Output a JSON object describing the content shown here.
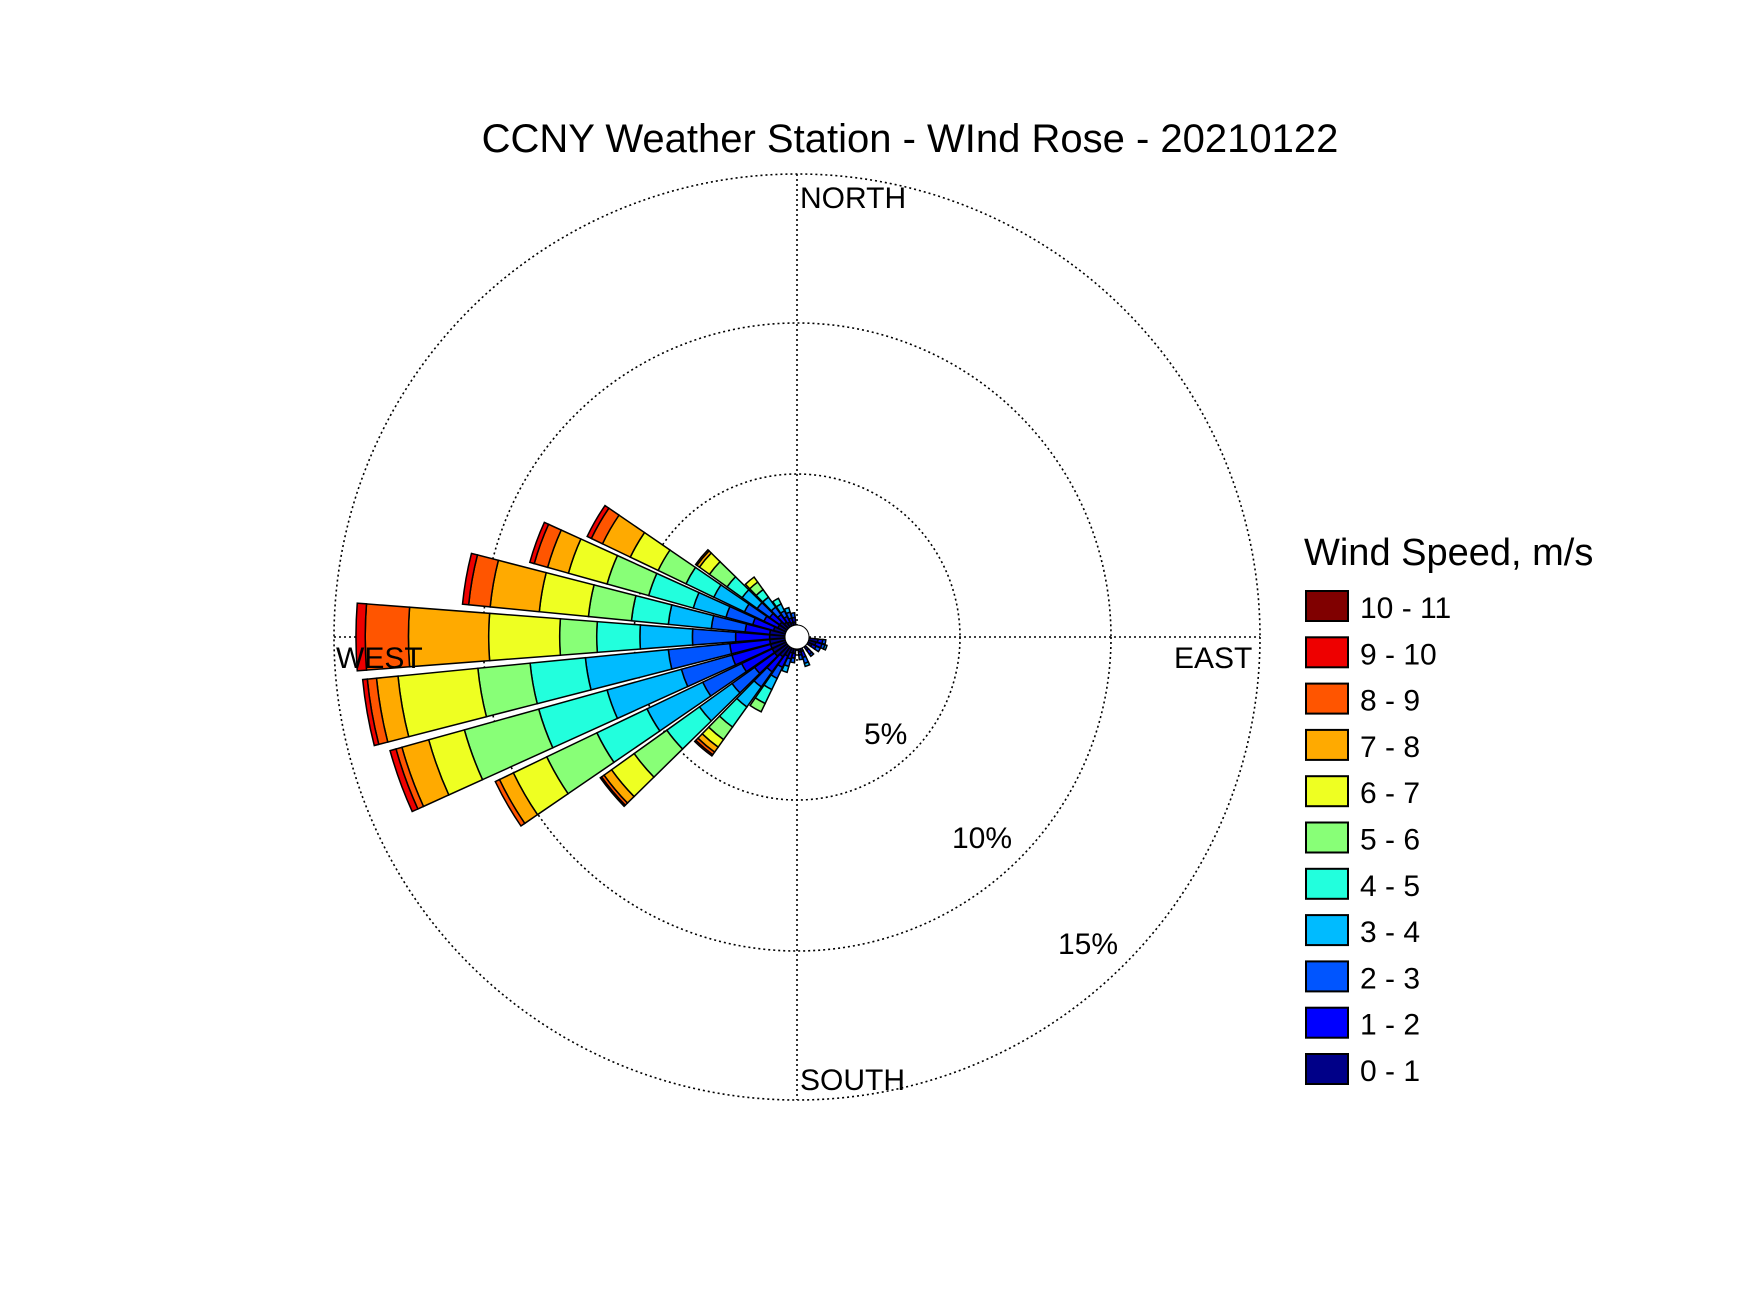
{
  "chart_data": {
    "type": "wind-rose",
    "title": "CCNY Weather Station - WInd Rose - 20210122",
    "direction_labels": {
      "north": "NORTH",
      "east": "EAST",
      "south": "SOUTH",
      "west": "WEST"
    },
    "ring_labels": [
      "5%",
      "10%",
      "15%"
    ],
    "rings": [
      5,
      10,
      15
    ],
    "rmax": 15,
    "grid": true,
    "legend_position": "right",
    "legend": {
      "title": "Wind Speed, m/s",
      "bins": [
        "10 - 11",
        "9 - 10",
        "8 - 9",
        "7 - 8",
        "6 - 7",
        "5 - 6",
        "4 - 5",
        "3 - 4",
        "2 - 3",
        "1 - 2",
        "0 - 1"
      ],
      "colors": [
        "#800000",
        "#ee0000",
        "#ff5500",
        "#ffaa00",
        "#eeff22",
        "#88ff77",
        "#22ffdd",
        "#00bbff",
        "#0055ff",
        "#0000ff",
        "#000088"
      ]
    },
    "bin_colors_low_to_high": [
      "#000088",
      "#0000ff",
      "#0055ff",
      "#00bbff",
      "#22ffdd",
      "#88ff77",
      "#eeff22",
      "#ffaa00",
      "#ff5500",
      "#ee0000",
      "#800000"
    ],
    "sector_width_deg": 10,
    "sectors": [
      {
        "direction": 100,
        "cumulative": [
          0.3,
          0.45,
          0.55
        ]
      },
      {
        "direction": 110,
        "cumulative": [
          0.25,
          0.45,
          0.55,
          0.62
        ]
      },
      {
        "direction": 120,
        "cumulative": [
          0.15,
          0.3,
          0.45
        ]
      },
      {
        "direction": 140,
        "cumulative": [
          0.15,
          0.3,
          0.38
        ]
      },
      {
        "direction": 160,
        "cumulative": [
          0.1,
          0.3,
          0.5,
          0.6
        ]
      },
      {
        "direction": 170,
        "cumulative": [
          0.1,
          0.2,
          0.35
        ]
      },
      {
        "direction": 190,
        "cumulative": [
          0.15,
          0.3,
          0.45
        ]
      },
      {
        "direction": 200,
        "cumulative": [
          0.15,
          0.35,
          0.6,
          0.8
        ]
      },
      {
        "direction": 210,
        "cumulative": [
          0.3,
          0.7,
          1.1,
          1.5,
          2.0,
          2.3
        ]
      },
      {
        "direction": 220,
        "cumulative": [
          0.4,
          1.0,
          1.6,
          2.4,
          3.2,
          3.7,
          4.0,
          4.2,
          4.3,
          4.35
        ]
      },
      {
        "direction": 230,
        "cumulative": [
          0.5,
          1.3,
          2.2,
          3.5,
          4.8,
          6.1,
          7.0,
          7.3,
          7.4,
          7.45
        ]
      },
      {
        "direction": 240,
        "cumulative": [
          0.5,
          1.6,
          3.0,
          5.0,
          6.8,
          8.6,
          9.8,
          10.3,
          10.45
        ]
      },
      {
        "direction": 250,
        "cumulative": [
          0.5,
          1.8,
          3.5,
          6.0,
          8.3,
          10.8,
          12.0,
          12.9,
          13.1,
          13.3
        ]
      },
      {
        "direction": 260,
        "cumulative": [
          0.5,
          1.8,
          3.8,
          6.5,
          8.3,
          10.0,
          12.6,
          13.3,
          13.6,
          13.75
        ]
      },
      {
        "direction": 270,
        "cumulative": [
          0.5,
          1.6,
          3.0,
          4.7,
          6.1,
          7.3,
          9.6,
          12.2,
          13.6,
          13.9
        ]
      },
      {
        "direction": 280,
        "cumulative": [
          0.5,
          1.3,
          2.4,
          3.8,
          5.0,
          6.4,
          8.0,
          9.6,
          10.3,
          10.5
        ]
      },
      {
        "direction": 290,
        "cumulative": [
          0.4,
          1.1,
          2.0,
          3.1,
          4.6,
          6.0,
          7.3,
          8.0,
          8.45,
          8.6
        ]
      },
      {
        "direction": 300,
        "cumulative": [
          0.3,
          0.8,
          1.5,
          2.6,
          3.6,
          4.6,
          5.6,
          6.6,
          7.0,
          7.15
        ]
      },
      {
        "direction": 310,
        "cumulative": [
          0.3,
          0.7,
          1.2,
          1.8,
          2.4,
          3.1,
          3.5,
          3.6,
          3.65
        ]
      },
      {
        "direction": 320,
        "cumulative": [
          0.2,
          0.5,
          0.8,
          1.2,
          1.5,
          1.8,
          2.0
        ]
      },
      {
        "direction": 330,
        "cumulative": [
          0.15,
          0.35,
          0.55,
          0.8,
          1.0
        ]
      },
      {
        "direction": 340,
        "cumulative": [
          0.1,
          0.25,
          0.45,
          0.6
        ]
      },
      {
        "direction": 350,
        "cumulative": [
          0.1,
          0.25,
          0.4
        ]
      }
    ]
  }
}
